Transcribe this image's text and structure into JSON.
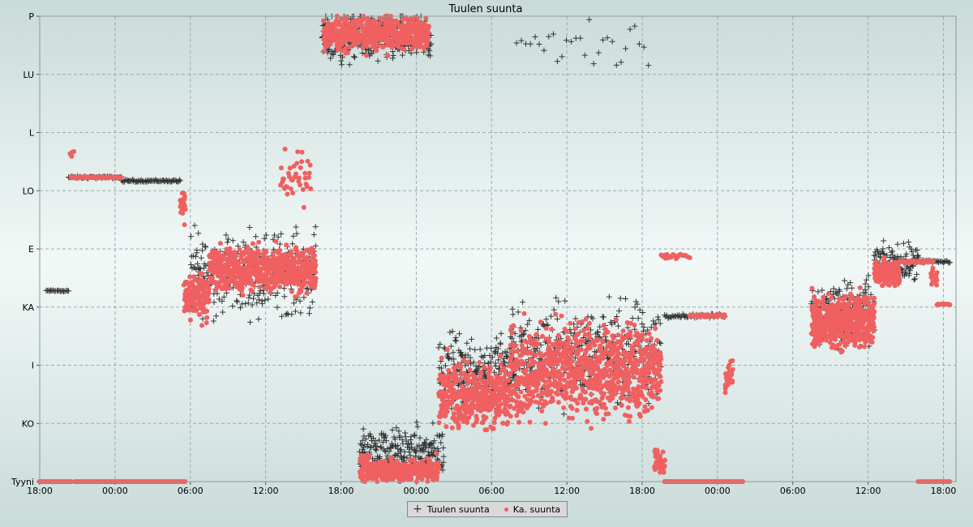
{
  "chart_data": {
    "type": "scatter",
    "title": "Tuulen suunta",
    "y_categories": [
      "Tyyni",
      "KO",
      "I",
      "KA",
      "E",
      "LO",
      "L",
      "LU",
      "P"
    ],
    "x_ticks": [
      "18:00",
      "00:00",
      "06:00",
      "12:00",
      "18:00",
      "00:00",
      "06:00",
      "12:00",
      "18:00",
      "00:00",
      "06:00",
      "12:00",
      "18:00"
    ],
    "x_range_hours": [
      0,
      73
    ],
    "y_range": [
      0,
      8
    ],
    "grid": true,
    "legend_placement": "bottom-center",
    "series": [
      {
        "name": "Tuulen suunta",
        "marker": "plus",
        "color": "#333333",
        "segments": [
          {
            "x0": 0.5,
            "x1": 2.3,
            "y": 3.28,
            "jitter": 0.02,
            "n": 20
          },
          {
            "x0": 2.3,
            "x1": 6.5,
            "y": 5.23,
            "jitter": 0.03,
            "n": 55
          },
          {
            "x0": 6.5,
            "x1": 11.2,
            "y": 5.17,
            "jitter": 0.03,
            "n": 60
          },
          {
            "x0": 12.0,
            "x1": 22.0,
            "y": 3.6,
            "jitter": 1.0,
            "n": 320
          },
          {
            "x0": 22.5,
            "x1": 31.2,
            "y": 7.6,
            "jitter": 0.6,
            "n": 260
          },
          {
            "x0": 25.5,
            "x1": 32.2,
            "y": 0.5,
            "jitter": 0.6,
            "n": 230
          },
          {
            "x0": 31.8,
            "x1": 37.8,
            "y": 1.9,
            "jitter": 0.9,
            "n": 240
          },
          {
            "x0": 37.5,
            "x1": 49.5,
            "y": 2.2,
            "jitter": 1.2,
            "n": 420
          },
          {
            "x0": 38.0,
            "x1": 48.5,
            "y": 7.5,
            "jitter": 0.6,
            "n": 30
          },
          {
            "x0": 49.8,
            "x1": 54.6,
            "y": 2.85,
            "jitter": 0.05,
            "n": 55
          },
          {
            "x0": 61.5,
            "x1": 66.5,
            "y": 2.9,
            "jitter": 0.8,
            "n": 200
          },
          {
            "x0": 66.5,
            "x1": 70.0,
            "y": 3.75,
            "jitter": 0.45,
            "n": 110
          },
          {
            "x0": 70.0,
            "x1": 72.5,
            "y": 3.78,
            "jitter": 0.05,
            "n": 30
          }
        ]
      },
      {
        "name": "Ka. suunta",
        "marker": "dot",
        "color": "#f06060",
        "segments": [
          {
            "x0": 0.0,
            "x1": 2.5,
            "y": 0.0,
            "jitter": 0,
            "n": 25
          },
          {
            "x0": 2.8,
            "x1": 11.6,
            "y": 0.0,
            "jitter": 0,
            "n": 70
          },
          {
            "x0": 2.4,
            "x1": 2.7,
            "y": 5.65,
            "jitter": 0.1,
            "n": 6
          },
          {
            "x0": 2.5,
            "x1": 6.5,
            "y": 5.23,
            "jitter": 0.02,
            "n": 45
          },
          {
            "x0": 11.2,
            "x1": 11.6,
            "y": 4.7,
            "jitter": 0.5,
            "n": 20
          },
          {
            "x0": 11.5,
            "x1": 13.5,
            "y": 3.2,
            "jitter": 0.6,
            "n": 120
          },
          {
            "x0": 13.5,
            "x1": 22.0,
            "y": 3.65,
            "jitter": 0.55,
            "n": 600
          },
          {
            "x0": 19.2,
            "x1": 21.6,
            "y": 5.2,
            "jitter": 0.6,
            "n": 40
          },
          {
            "x0": 22.6,
            "x1": 31.0,
            "y": 7.7,
            "jitter": 0.4,
            "n": 500
          },
          {
            "x0": 25.5,
            "x1": 31.8,
            "y": 0.2,
            "jitter": 0.3,
            "n": 350
          },
          {
            "x0": 31.8,
            "x1": 37.5,
            "y": 1.5,
            "jitter": 0.8,
            "n": 400
          },
          {
            "x0": 37.5,
            "x1": 49.5,
            "y": 1.9,
            "jitter": 1.1,
            "n": 900
          },
          {
            "x0": 49.0,
            "x1": 49.8,
            "y": 0.35,
            "jitter": 0.3,
            "n": 40
          },
          {
            "x0": 49.0,
            "x1": 49.2,
            "y": 0.5,
            "jitter": 0.1,
            "n": 10
          },
          {
            "x0": 49.5,
            "x1": 51.8,
            "y": 3.88,
            "jitter": 0.05,
            "n": 20
          },
          {
            "x0": 51.8,
            "x1": 54.6,
            "y": 2.85,
            "jitter": 0.03,
            "n": 40
          },
          {
            "x0": 54.6,
            "x1": 55.2,
            "y": 1.8,
            "jitter": 0.35,
            "n": 35
          },
          {
            "x0": 49.8,
            "x1": 56.0,
            "y": 0.0,
            "jitter": 0,
            "n": 55
          },
          {
            "x0": 61.5,
            "x1": 66.5,
            "y": 2.75,
            "jitter": 0.65,
            "n": 500
          },
          {
            "x0": 66.5,
            "x1": 68.5,
            "y": 3.6,
            "jitter": 0.3,
            "n": 150
          },
          {
            "x0": 68.5,
            "x1": 71.2,
            "y": 3.78,
            "jitter": 0.03,
            "n": 40
          },
          {
            "x0": 71.0,
            "x1": 71.5,
            "y": 3.5,
            "jitter": 0.25,
            "n": 20
          },
          {
            "x0": 71.5,
            "x1": 72.5,
            "y": 3.05,
            "jitter": 0.02,
            "n": 12
          },
          {
            "x0": 70.0,
            "x1": 72.5,
            "y": 0.0,
            "jitter": 0,
            "n": 15
          }
        ]
      }
    ]
  }
}
